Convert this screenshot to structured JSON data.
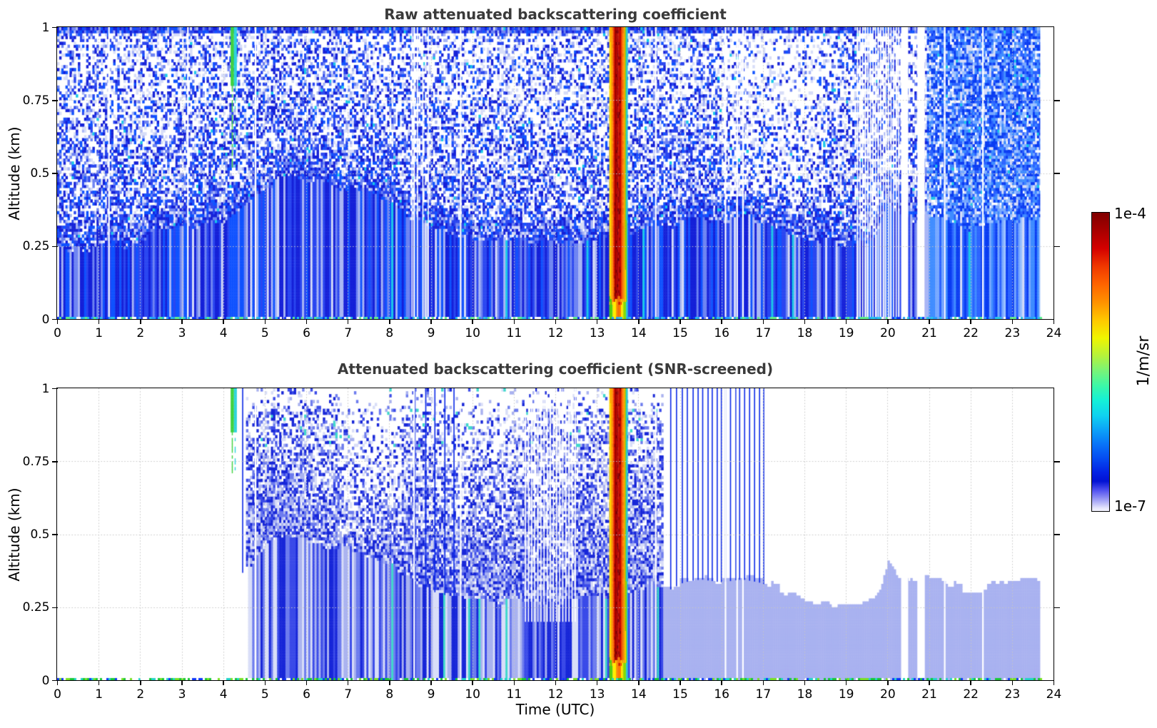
{
  "figure": {
    "background": "#ffffff",
    "xlabel": "Time (UTC)",
    "ylabel": "Altitude (km)",
    "grid_color": "#c6c6c6",
    "title_color": "#3a3a3a",
    "frame_color": "#000000"
  },
  "colorbar": {
    "max_label": "1e-4",
    "min_label": "1e-7",
    "unit_label": "1/m/sr",
    "gradient": [
      [
        "#800000",
        0
      ],
      [
        "#a80000",
        6
      ],
      [
        "#d40000",
        12
      ],
      [
        "#f03800",
        18
      ],
      [
        "#ff6400",
        24
      ],
      [
        "#ff9100",
        30
      ],
      [
        "#ffc800",
        36
      ],
      [
        "#f0f500",
        42
      ],
      [
        "#b4f23c",
        48
      ],
      [
        "#78f478",
        53
      ],
      [
        "#3cf8a8",
        58
      ],
      [
        "#14f0d8",
        63
      ],
      [
        "#0fd2f0",
        68
      ],
      [
        "#0ca0f8",
        73
      ],
      [
        "#0870f8",
        78
      ],
      [
        "#0546f0",
        83
      ],
      [
        "#0322e4",
        87
      ],
      [
        "#0212d4",
        90
      ],
      [
        "#5050f0",
        93
      ],
      [
        "#8c8cf4",
        95.5
      ],
      [
        "#bebef8",
        97.5
      ],
      [
        "#e6e6fc",
        99
      ],
      [
        "#f4f4ff",
        100
      ]
    ]
  },
  "palette": {
    "solid_blue": [
      "#0722e6",
      "#082cf2",
      "#0f38fa",
      "#0730d8"
    ],
    "bright_blue": "#0e86ff",
    "dark_bottom": "#041088",
    "speckle_blues": [
      "#1520d8",
      "#2a46f0",
      "#0f52ff",
      "#6e84f2",
      "#a9b6f5"
    ],
    "right_blues": [
      "#0a3cf2",
      "#2a62ff",
      "#3f8cff",
      "#77a8ff",
      "#9cc2ff"
    ],
    "pale": "#d7ddf8",
    "cyan_fleck": "#19c8e8",
    "cloud_shades": [
      "#1726d8",
      "#3a4ae8",
      "#6d7cee",
      "#a9b2f0",
      "#d9def8"
    ],
    "cyan_dash": "#3fd8cc",
    "streak_blue": "#0a28e8",
    "rain_core": [
      "#a50000",
      "#c00a00",
      "#8f0000",
      "#d41800"
    ],
    "rain_stops": [
      [
        0.06,
        "#ffd900"
      ],
      [
        0.13,
        "#ffa200"
      ],
      [
        0.2,
        "#ff6a00"
      ],
      [
        0.27,
        "#f53400"
      ],
      [
        0.63,
        "CORE"
      ],
      [
        0.7,
        "#e83000"
      ],
      [
        0.77,
        "#ff6a00"
      ],
      [
        0.84,
        "#ffa200"
      ],
      [
        0.9,
        "#ffd900"
      ],
      [
        0.95,
        "#8fd400"
      ],
      [
        1.01,
        "#2fc8c8"
      ]
    ],
    "rain_low": [
      [
        0.12,
        "#55cc11"
      ],
      [
        0.3,
        "#ffee00"
      ],
      [
        0.45,
        "#ff9900"
      ],
      [
        0.62,
        "#ff7700"
      ],
      [
        0.78,
        "#ffee00"
      ],
      [
        0.9,
        "#88dd00"
      ],
      [
        1.01,
        "#33cccc"
      ]
    ],
    "green_plume": "#3fd23f",
    "cyan_plume": "#2fd4dc",
    "bottom_dots_raw": [
      "#27c8e8",
      "#2aa0ff",
      "#5ff08c",
      "#ffffff",
      "#0f38fa"
    ],
    "bottom_dots_screened": [
      "#19c837",
      "#23d4c8",
      "#7ae026",
      "#ffffff",
      "#0f38fa"
    ]
  },
  "chart_data": [
    {
      "id": "raw",
      "type": "heatmap",
      "title": "Raw attenuated backscattering coefficient",
      "snr_screened": false,
      "xlim": [
        0,
        24
      ],
      "ylim": [
        0,
        1
      ],
      "xticks": [
        "0",
        "1",
        "2",
        "3",
        "4",
        "5",
        "6",
        "7",
        "8",
        "9",
        "10",
        "11",
        "12",
        "13",
        "14",
        "15",
        "16",
        "17",
        "18",
        "19",
        "20",
        "21",
        "22",
        "23",
        "24"
      ],
      "yticks": [
        "0",
        "0.25",
        "0.5",
        "0.75",
        "1"
      ],
      "value_scale": "log",
      "value_min": "1e-7",
      "value_max": "1e-4",
      "value_unit": "1/m/sr",
      "data_end_time": 23.68,
      "boundary_layer": {
        "times": [
          0,
          0.5,
          1.0,
          1.5,
          1.9,
          2.1,
          2.4,
          2.8,
          3.1,
          3.5,
          4.0,
          4.3,
          4.6,
          4.8,
          5.1,
          5.5,
          6.0,
          6.5,
          7.0,
          7.5,
          8.0,
          8.5,
          9.0,
          9.5,
          10.0,
          10.5,
          11.0,
          11.5,
          12.0,
          12.5,
          13.0,
          13.5,
          14.0,
          14.4,
          14.7,
          15.1,
          15.5,
          16.0,
          16.5,
          16.9,
          17.3,
          17.8,
          18.3,
          18.8,
          19.2,
          19.6,
          19.8,
          20.0,
          20.25,
          20.5,
          20.8,
          21.2,
          21.6,
          22.0,
          22.3,
          22.6,
          23.0,
          23.4,
          23.7
        ],
        "heights": [
          0.24,
          0.24,
          0.25,
          0.25,
          0.25,
          0.28,
          0.3,
          0.31,
          0.31,
          0.32,
          0.33,
          0.35,
          0.39,
          0.43,
          0.46,
          0.5,
          0.48,
          0.46,
          0.45,
          0.43,
          0.4,
          0.36,
          0.31,
          0.29,
          0.28,
          0.27,
          0.27,
          0.26,
          0.27,
          0.27,
          0.28,
          0.29,
          0.31,
          0.33,
          0.31,
          0.34,
          0.35,
          0.34,
          0.35,
          0.34,
          0.32,
          0.29,
          0.27,
          0.26,
          0.26,
          0.28,
          0.31,
          0.41,
          0.36,
          0.34,
          0.35,
          0.35,
          0.33,
          0.31,
          0.31,
          0.33,
          0.34,
          0.34,
          0.34
        ]
      },
      "rain_event": {
        "t_start": 13.3,
        "t_end": 13.72
      },
      "green_plume": {
        "t0": 4.18,
        "t1": 4.26,
        "t2": 4.33,
        "alt_thick": 0.8,
        "alt_min": 0.52
      },
      "light_smudges": [
        {
          "t": 10.9,
          "tw": 0.9,
          "a": 0.05,
          "aw": 0.07,
          "f": 0.5
        },
        {
          "t": 14.15,
          "tw": 0.45,
          "a": 0.04,
          "aw": 0.06,
          "f": 0.55
        }
      ],
      "dense_right_start": 20.95,
      "white_zone": {
        "t": [
          16.0,
          18.45
        ],
        "alt_min": 0.45
      },
      "gap_times": [
        1.25,
        3.15,
        4.78,
        8.6,
        9.72,
        14.42,
        16.1,
        16.38,
        16.52,
        21.38,
        22.3
      ],
      "gap_bands": [
        [
          20.33,
          20.5
        ],
        [
          20.72,
          20.9
        ]
      ],
      "comb_lines": [
        {
          "from": 19.28,
          "to": 20.28,
          "step": 0.062,
          "alt_min": 0
        },
        {
          "from": 8.55,
          "to": 8.95,
          "step": 0.13,
          "alt_min": 0
        }
      ],
      "streak_times": []
    },
    {
      "id": "screened",
      "type": "heatmap",
      "title": "Attenuated backscattering coefficient (SNR-screened)",
      "snr_screened": true,
      "xlim": [
        0,
        24
      ],
      "ylim": [
        0,
        1
      ],
      "xticks": [
        "0",
        "1",
        "2",
        "3",
        "4",
        "5",
        "6",
        "7",
        "8",
        "9",
        "10",
        "11",
        "12",
        "13",
        "14",
        "15",
        "16",
        "17",
        "18",
        "19",
        "20",
        "21",
        "22",
        "23",
        "24"
      ],
      "yticks": [
        "0",
        "0.25",
        "0.5",
        "0.75",
        "1"
      ],
      "value_scale": "log",
      "value_min": "1e-7",
      "value_max": "1e-4",
      "value_unit": "1/m/sr",
      "data_end_time": 23.68,
      "boundary_layer": {
        "times": [
          0,
          0.5,
          1.0,
          1.5,
          1.9,
          2.1,
          2.4,
          2.8,
          3.1,
          3.5,
          4.0,
          4.3,
          4.6,
          4.8,
          5.1,
          5.5,
          6.0,
          6.5,
          7.0,
          7.5,
          8.0,
          8.5,
          9.0,
          9.5,
          10.0,
          10.5,
          11.0,
          11.5,
          12.0,
          12.5,
          13.0,
          13.5,
          14.0,
          14.4,
          14.7,
          15.1,
          15.5,
          16.0,
          16.5,
          16.9,
          17.3,
          17.8,
          18.3,
          18.8,
          19.2,
          19.6,
          19.8,
          20.0,
          20.25,
          20.5,
          20.8,
          21.2,
          21.6,
          22.0,
          22.3,
          22.6,
          23.0,
          23.4,
          23.7
        ],
        "heights": [
          0.24,
          0.24,
          0.25,
          0.25,
          0.25,
          0.28,
          0.3,
          0.31,
          0.31,
          0.32,
          0.33,
          0.35,
          0.39,
          0.43,
          0.46,
          0.5,
          0.48,
          0.46,
          0.45,
          0.43,
          0.4,
          0.36,
          0.31,
          0.29,
          0.28,
          0.27,
          0.27,
          0.26,
          0.27,
          0.27,
          0.28,
          0.29,
          0.31,
          0.33,
          0.31,
          0.34,
          0.35,
          0.34,
          0.35,
          0.34,
          0.32,
          0.29,
          0.27,
          0.26,
          0.26,
          0.28,
          0.31,
          0.41,
          0.36,
          0.34,
          0.35,
          0.35,
          0.33,
          0.31,
          0.31,
          0.33,
          0.34,
          0.34,
          0.34
        ]
      },
      "rain_event": {
        "t_start": 13.3,
        "t_end": 13.72
      },
      "green_plume": {
        "t0": 4.18,
        "t1": 4.26,
        "t2": 4.33,
        "alt_thick": 0.85,
        "alt_min": 0.7
      },
      "cloud_range": [
        4.55,
        14.62
      ],
      "light_smudges": [
        {
          "t": 10.9,
          "tw": 0.8,
          "a": 0.06,
          "aw": 0.07,
          "f": 0.45
        },
        {
          "t": 13.95,
          "tw": 0.35,
          "a": 0.05,
          "aw": 0.06,
          "f": 0.5
        },
        {
          "t": 14.35,
          "tw": 0.3,
          "a": 0.04,
          "aw": 0.05,
          "f": 0.4
        }
      ],
      "gap_times": [
        1.25,
        3.15,
        4.78,
        8.6,
        9.72,
        14.42,
        16.1,
        16.38,
        16.52,
        21.38,
        22.3
      ],
      "gap_bands": [
        [
          20.33,
          20.5
        ],
        [
          20.72,
          20.9
        ]
      ],
      "comb_lines": [
        {
          "from": 11.28,
          "to": 12.5,
          "step": 0.075,
          "alt_min": 0.2
        }
      ],
      "streak_times": [
        4.47,
        8.62,
        8.88,
        9.1,
        9.34,
        9.56,
        14.78,
        14.92,
        15.06,
        15.18,
        15.32,
        15.44,
        15.55,
        15.68,
        15.78,
        15.9,
        16.0,
        16.1,
        16.22,
        16.35,
        16.44,
        16.56,
        16.68,
        16.8,
        16.92,
        17.02
      ]
    }
  ]
}
